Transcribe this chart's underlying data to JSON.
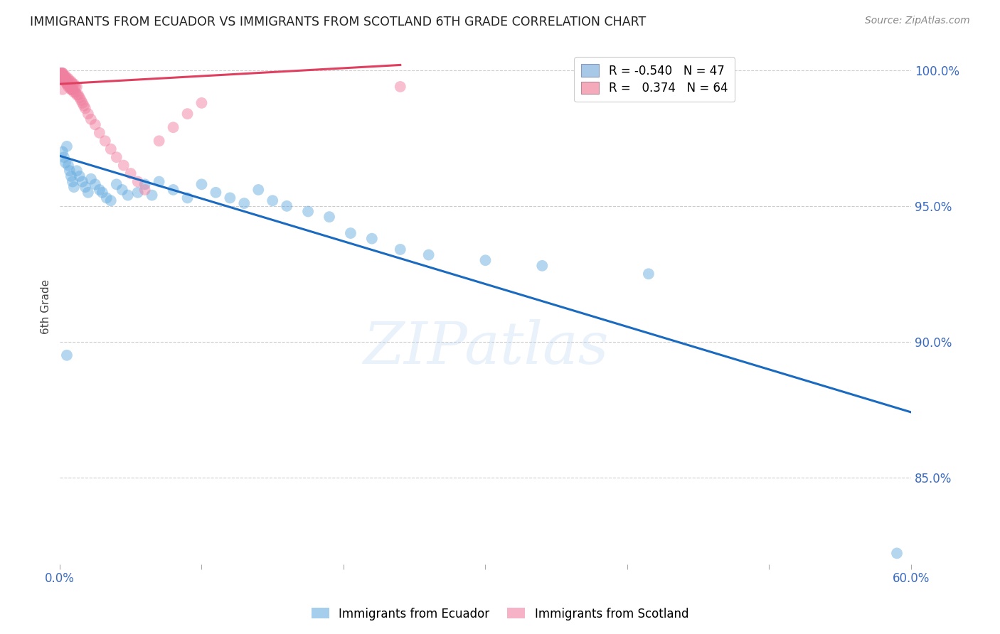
{
  "title": "IMMIGRANTS FROM ECUADOR VS IMMIGRANTS FROM SCOTLAND 6TH GRADE CORRELATION CHART",
  "source": "Source: ZipAtlas.com",
  "ylabel": "6th Grade",
  "xlim": [
    0.0,
    0.6
  ],
  "ylim": [
    0.818,
    1.008
  ],
  "yticks": [
    0.85,
    0.9,
    0.95,
    1.0
  ],
  "ytick_labels": [
    "85.0%",
    "90.0%",
    "95.0%",
    "100.0%"
  ],
  "legend_label1": "R = -0.540   N = 47",
  "legend_label2": "R =   0.374   N = 64",
  "legend_color1": "#a8c8e8",
  "legend_color2": "#f4aabb",
  "watermark": "ZIPatlas",
  "blue_color": "#6aaee0",
  "pink_color": "#f080a0",
  "trendline_blue_color": "#1a6abf",
  "trendline_pink_color": "#e04060",
  "blue_scatter_x": [
    0.002,
    0.003,
    0.004,
    0.005,
    0.006,
    0.007,
    0.008,
    0.009,
    0.01,
    0.012,
    0.014,
    0.016,
    0.018,
    0.02,
    0.022,
    0.025,
    0.028,
    0.03,
    0.033,
    0.036,
    0.04,
    0.044,
    0.048,
    0.055,
    0.06,
    0.065,
    0.07,
    0.08,
    0.09,
    0.1,
    0.11,
    0.12,
    0.13,
    0.14,
    0.15,
    0.16,
    0.175,
    0.19,
    0.205,
    0.22,
    0.24,
    0.26,
    0.3,
    0.34,
    0.415,
    0.59,
    0.005
  ],
  "blue_scatter_y": [
    0.97,
    0.968,
    0.966,
    0.972,
    0.965,
    0.963,
    0.961,
    0.959,
    0.957,
    0.963,
    0.961,
    0.959,
    0.957,
    0.955,
    0.96,
    0.958,
    0.956,
    0.955,
    0.953,
    0.952,
    0.958,
    0.956,
    0.954,
    0.955,
    0.958,
    0.954,
    0.959,
    0.956,
    0.953,
    0.958,
    0.955,
    0.953,
    0.951,
    0.956,
    0.952,
    0.95,
    0.948,
    0.946,
    0.94,
    0.938,
    0.934,
    0.932,
    0.93,
    0.928,
    0.925,
    0.822,
    0.895
  ],
  "pink_scatter_x": [
    0.001,
    0.001,
    0.001,
    0.002,
    0.002,
    0.002,
    0.003,
    0.003,
    0.003,
    0.003,
    0.004,
    0.004,
    0.004,
    0.004,
    0.005,
    0.005,
    0.005,
    0.006,
    0.006,
    0.006,
    0.007,
    0.007,
    0.008,
    0.008,
    0.009,
    0.009,
    0.01,
    0.011,
    0.012,
    0.013,
    0.014,
    0.015,
    0.016,
    0.017,
    0.018,
    0.02,
    0.022,
    0.025,
    0.028,
    0.032,
    0.036,
    0.04,
    0.045,
    0.05,
    0.055,
    0.06,
    0.07,
    0.08,
    0.09,
    0.1,
    0.001,
    0.002,
    0.003,
    0.004,
    0.005,
    0.006,
    0.007,
    0.008,
    0.009,
    0.01,
    0.011,
    0.012,
    0.24,
    0.002
  ],
  "pink_scatter_y": [
    0.999,
    0.999,
    0.998,
    0.999,
    0.998,
    0.998,
    0.998,
    0.997,
    0.997,
    0.997,
    0.997,
    0.996,
    0.996,
    0.996,
    0.996,
    0.995,
    0.995,
    0.995,
    0.995,
    0.994,
    0.994,
    0.994,
    0.993,
    0.993,
    0.993,
    0.993,
    0.992,
    0.992,
    0.991,
    0.991,
    0.99,
    0.989,
    0.988,
    0.987,
    0.986,
    0.984,
    0.982,
    0.98,
    0.977,
    0.974,
    0.971,
    0.968,
    0.965,
    0.962,
    0.959,
    0.956,
    0.974,
    0.979,
    0.984,
    0.988,
    0.999,
    0.999,
    0.998,
    0.998,
    0.997,
    0.997,
    0.996,
    0.996,
    0.995,
    0.995,
    0.994,
    0.994,
    0.994,
    0.993
  ],
  "blue_trend_x": [
    0.0,
    0.6
  ],
  "blue_trend_y": [
    0.9685,
    0.874
  ],
  "pink_trend_x": [
    0.0,
    0.24
  ],
  "pink_trend_y": [
    0.995,
    1.002
  ]
}
